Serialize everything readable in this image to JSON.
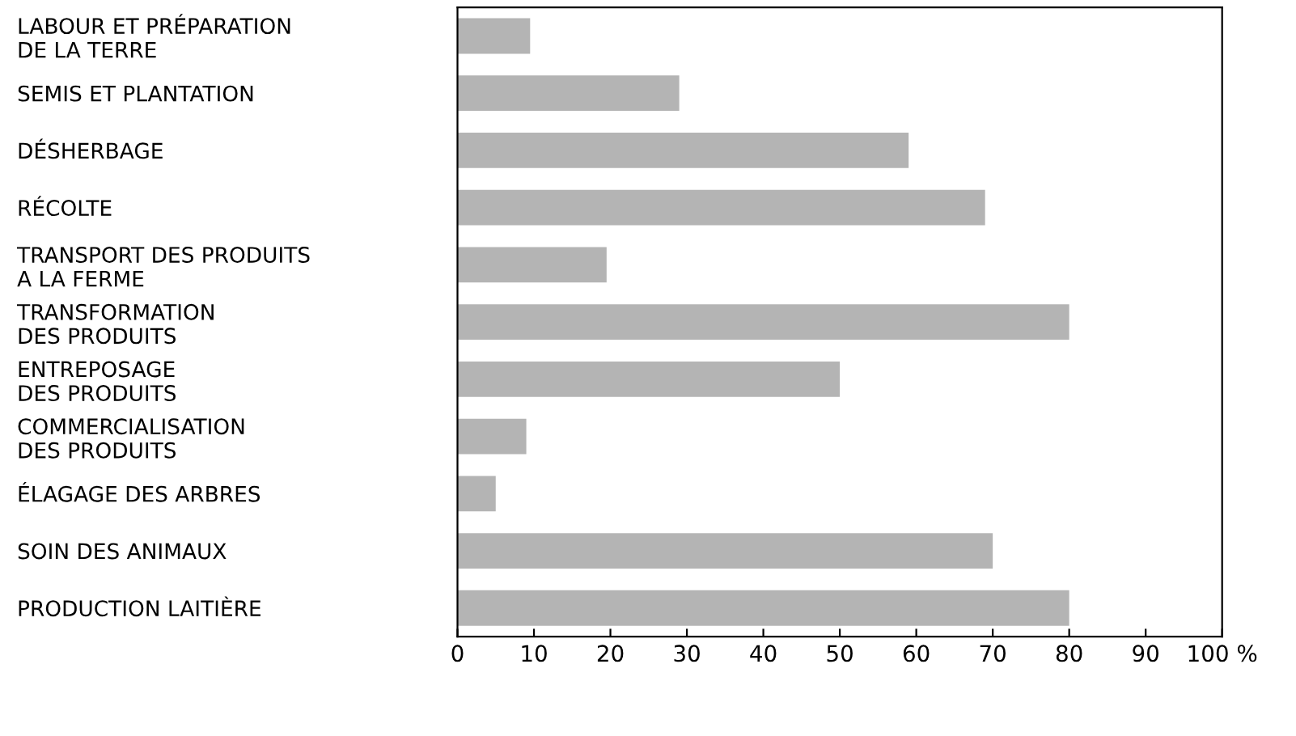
{
  "chart_data": {
    "type": "bar",
    "orientation": "horizontal",
    "categories": [
      "LABOUR ET PRÉPARATION\nDE LA TERRE",
      "SEMIS ET PLANTATION",
      "DÉSHERBAGE",
      "RÉCOLTE",
      "TRANSPORT DES PRODUITS\nA LA FERME",
      "TRANSFORMATION\nDES PRODUITS",
      "ENTREPOSAGE\nDES PRODUITS",
      "COMMERCIALISATION\nDES PRODUITS",
      "ÉLAGAGE DES ARBRES",
      "SOIN DES ANIMAUX",
      "PRODUCTION LAITIÈRE"
    ],
    "values": [
      9.5,
      29,
      59,
      69,
      19.5,
      80,
      50,
      9,
      5,
      70,
      80
    ],
    "color": "#b4b4b4",
    "xlim": [
      0,
      100
    ],
    "xticks": [
      0,
      10,
      20,
      30,
      40,
      50,
      60,
      70,
      80,
      90,
      {
        "value": 100,
        "label": "100 %"
      }
    ],
    "grid": false,
    "legend": false
  }
}
